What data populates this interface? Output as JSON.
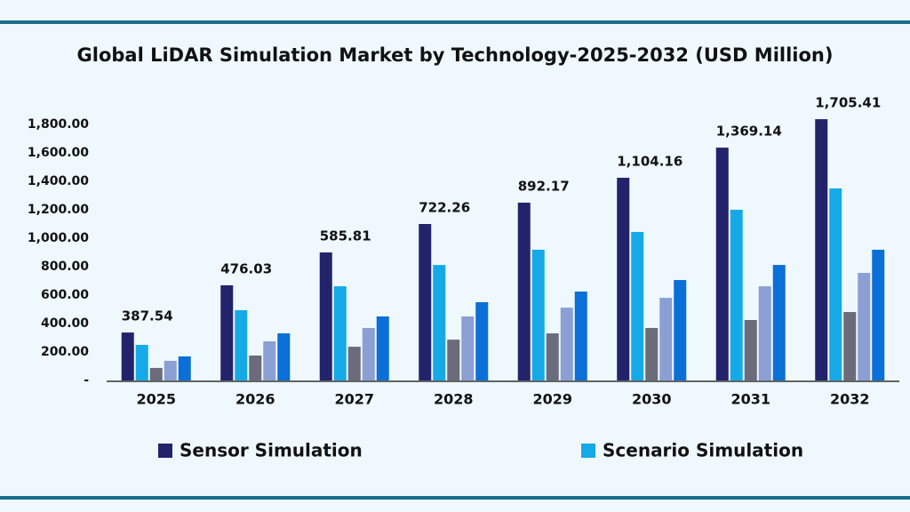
{
  "chart_data": {
    "type": "bar",
    "title": "Global LiDAR Simulation Market by Technology-2025-2032 (USD Million)",
    "categories": [
      "2025",
      "2026",
      "2027",
      "2028",
      "2029",
      "2030",
      "2031",
      "2032"
    ],
    "series": [
      {
        "name": "Sensor Simulation",
        "color": "#23236b",
        "values": [
          337,
          669,
          900,
          1100,
          1250,
          1425,
          1637,
          1837
        ]
      },
      {
        "name": "Scenario Simulation",
        "color": "#16a9e8",
        "values": [
          250,
          494,
          662,
          812,
          919,
          1044,
          1200,
          1350
        ]
      },
      {
        "color": "#6b6b7b",
        "values": [
          88,
          175,
          237,
          287,
          331,
          369,
          425,
          481
        ]
      },
      {
        "color": "#8b9fd4",
        "values": [
          138,
          275,
          369,
          450,
          512,
          581,
          662,
          756
        ]
      },
      {
        "color": "#0a6fd6",
        "values": [
          169,
          331,
          450,
          550,
          625,
          706,
          812,
          919
        ]
      }
    ],
    "annotations": [
      "387.54",
      "476.03",
      "585.81",
      "722.26",
      "892.17",
      "1,104.16",
      "1,369.14",
      "1,705.41"
    ],
    "ylim": [
      0,
      1900
    ],
    "yticks": [
      {
        "value": 0,
        "label": "-"
      },
      {
        "value": 200,
        "label": "200.00"
      },
      {
        "value": 400,
        "label": "400.00"
      },
      {
        "value": 600,
        "label": "600.00"
      },
      {
        "value": 800,
        "label": "800.00"
      },
      {
        "value": 1000,
        "label": "1,000.00"
      },
      {
        "value": 1200,
        "label": "1,200.00"
      },
      {
        "value": 1400,
        "label": "1,400.00"
      },
      {
        "value": 1600,
        "label": "1,600.00"
      },
      {
        "value": 1800,
        "label": "1,800.00"
      }
    ],
    "grid": false
  }
}
